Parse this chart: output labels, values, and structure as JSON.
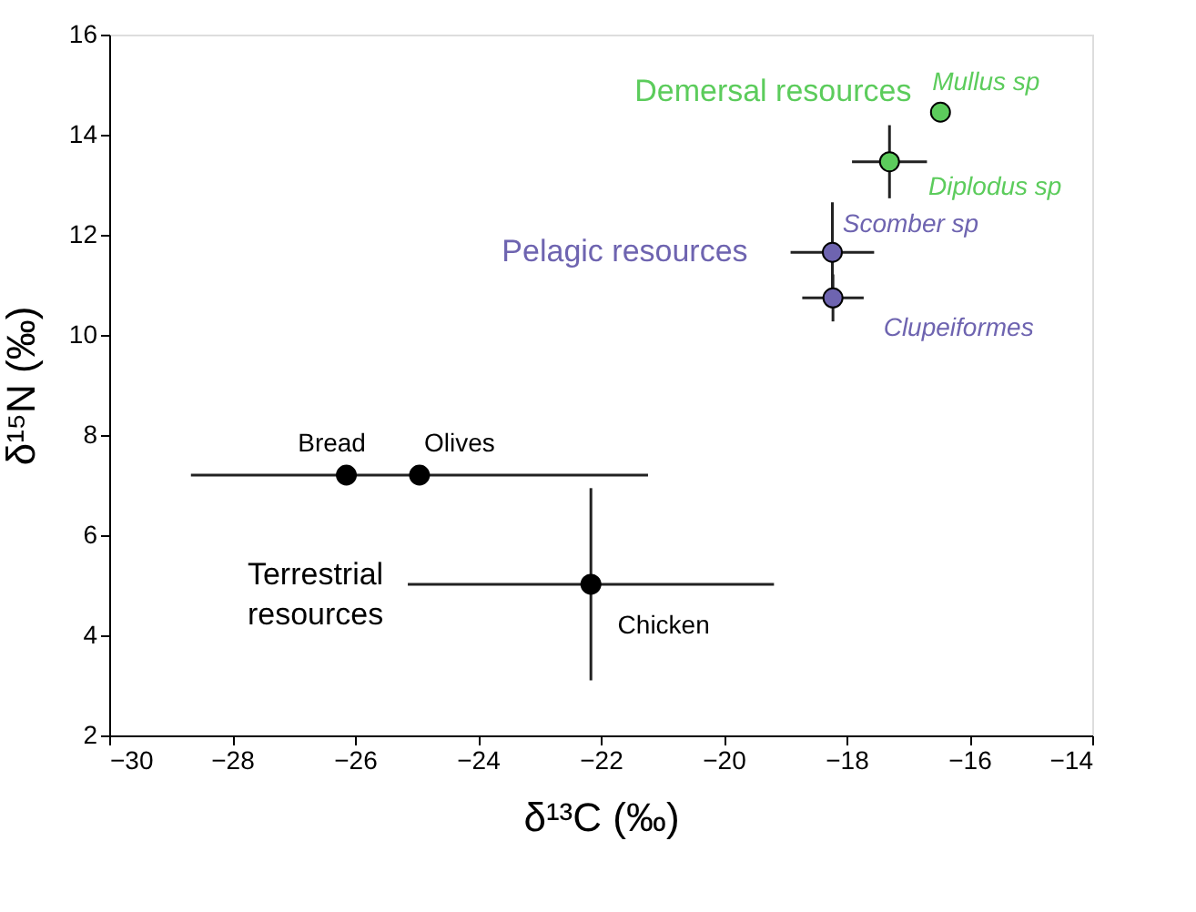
{
  "chart_data": {
    "type": "scatter",
    "xlabel": "δ¹³C (‰)",
    "ylabel": "δ¹⁵N (‰)",
    "xlim": [
      -30,
      -14
    ],
    "xticks": [
      -30,
      -28,
      -26,
      -24,
      -22,
      -20,
      -18,
      -16,
      -14
    ],
    "ylim": [
      2,
      16
    ],
    "yticks": [
      2,
      4,
      6,
      8,
      10,
      12,
      14,
      16
    ],
    "grid": false,
    "marker": "circle",
    "series": [
      {
        "name": "Terrestrial resources",
        "color": "#000000",
        "x": [
          -26.14,
          -24.95,
          -22.16
        ],
        "values": [
          7.2,
          7.2,
          5.02
        ],
        "xerrors": [
          null,
          3.72,
          2.98
        ],
        "errors": [
          null,
          null,
          1.92
        ]
      },
      {
        "name": "Pelagic resources",
        "color": "#6e64b0",
        "x": [
          -18.23,
          -18.22
        ],
        "values": [
          11.65,
          10.74
        ],
        "xerrors": [
          0.68,
          0.5
        ],
        "errors": [
          1.0,
          0.47
        ]
      },
      {
        "name": "Demersal resources",
        "color": "#5ccc5c",
        "x": [
          -16.47,
          -17.3
        ],
        "values": [
          14.45,
          13.46
        ],
        "xerrors": [
          null,
          0.61
        ],
        "errors": [
          null,
          0.73
        ]
      }
    ],
    "annotations": [
      {
        "text": "Bread",
        "x": -26.14,
        "y": 7.2
      },
      {
        "text": "Olives",
        "x": -24.95,
        "y": 7.2
      },
      {
        "text": "Chicken",
        "x": -22.16,
        "y": 5.02
      },
      {
        "text": "Scomber sp",
        "x": -18.23,
        "y": 11.65
      },
      {
        "text": "Clupeiformes",
        "x": -18.22,
        "y": 10.74
      },
      {
        "text": "Mullus sp",
        "x": -16.47,
        "y": 14.45
      },
      {
        "text": "Diplodus sp",
        "x": -17.3,
        "y": 13.46
      }
    ]
  }
}
